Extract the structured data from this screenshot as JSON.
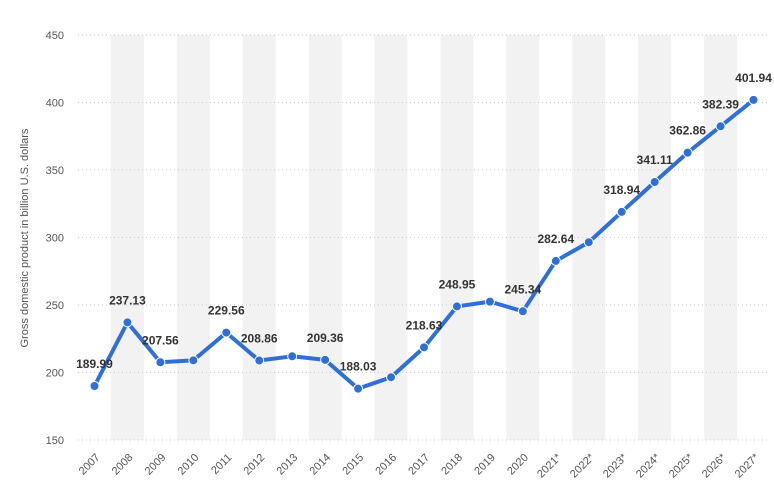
{
  "chart_data": {
    "type": "line",
    "title": "",
    "xlabel": "",
    "ylabel": "Gross domestic product in billion U.S. dollars",
    "ylim": [
      150,
      450
    ],
    "yticks": [
      150,
      200,
      250,
      300,
      350,
      400,
      450
    ],
    "grid": true,
    "legend": "none",
    "categories": [
      "2007",
      "2008",
      "2009",
      "2010",
      "2011",
      "2012",
      "2013",
      "2014",
      "2015",
      "2016",
      "2017",
      "2018",
      "2019",
      "2020",
      "2021*",
      "2022*",
      "2023*",
      "2024*",
      "2025*",
      "2026*",
      "2027*"
    ],
    "series": [
      {
        "values": [
          189.99,
          237.13,
          207.56,
          209.0,
          229.56,
          208.86,
          212.0,
          209.36,
          188.03,
          196.5,
          218.63,
          248.95,
          252.5,
          245.34,
          282.64,
          296.5,
          318.94,
          341.11,
          362.86,
          382.39,
          401.94
        ],
        "data_labels": [
          "189.99",
          "237.13",
          "207.56",
          "",
          "229.56",
          "208.86",
          "",
          "209.36",
          "188.03",
          "",
          "218.63",
          "248.95",
          "",
          "245.34",
          "282.64",
          "",
          "318.94",
          "341.11",
          "362.86",
          "382.39",
          "401.94"
        ],
        "color": "#2f6fd8"
      }
    ],
    "band_color": "#f2f2f2",
    "grid_color": "#c8c8c8"
  }
}
